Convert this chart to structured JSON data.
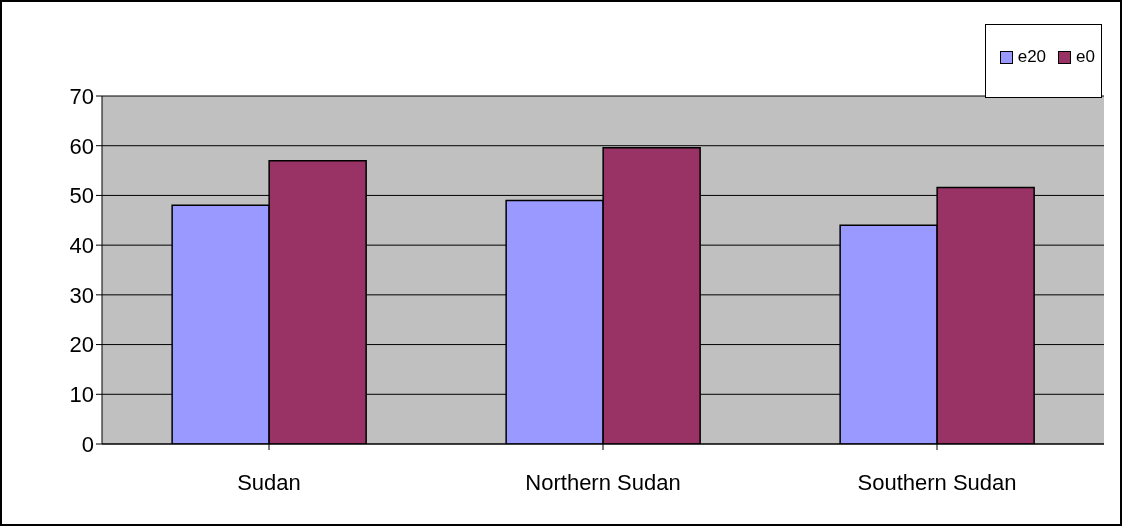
{
  "chart_data": {
    "type": "bar",
    "categories": [
      "Sudan",
      "Northern Sudan",
      "Southern Sudan"
    ],
    "series": [
      {
        "name": "e20",
        "color": "#9999ff",
        "values": [
          48,
          49,
          44
        ]
      },
      {
        "name": "e0",
        "color": "#993366",
        "values": [
          57,
          59.6,
          51.6
        ]
      }
    ],
    "ylim": [
      0,
      70
    ],
    "yticks": [
      0,
      10,
      20,
      30,
      40,
      50,
      60,
      70
    ],
    "grid": "y",
    "legend": "top right"
  }
}
